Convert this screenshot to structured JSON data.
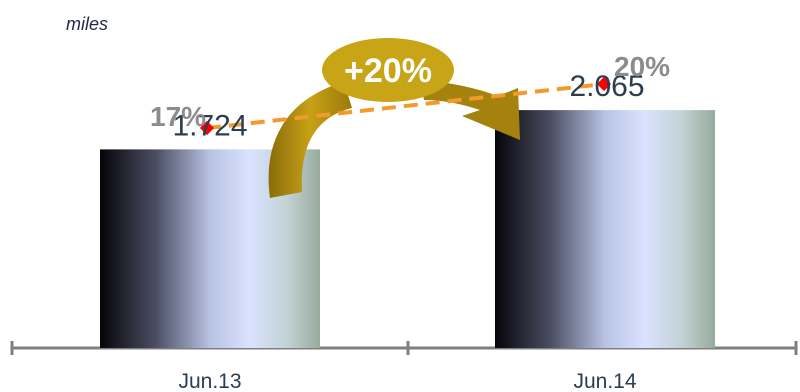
{
  "chart_data": {
    "type": "bar",
    "unit_label": "miles",
    "categories": [
      "Jun.13",
      "Jun.14"
    ],
    "values": [
      1724,
      2065
    ],
    "value_labels": [
      "1.724",
      "2.065"
    ],
    "ylim": [
      0,
      2500
    ],
    "secondary_series": {
      "values": [
        17,
        20
      ],
      "labels": [
        "17%",
        "20%"
      ],
      "style": "dashed line with markers",
      "color": "#f39a2b"
    },
    "growth_annotation": "+20%",
    "colors": {
      "bar_dark": "#0b0b12",
      "bar_light": "#d9e3ff",
      "bar_edge": "#9aae9e",
      "arrow": "#b08c10",
      "badge": "#c8a417",
      "label": "#2b3d4f",
      "pct_label": "#8c8c8c",
      "axis": "#7f7f7f",
      "marker": "#ff0000"
    }
  }
}
